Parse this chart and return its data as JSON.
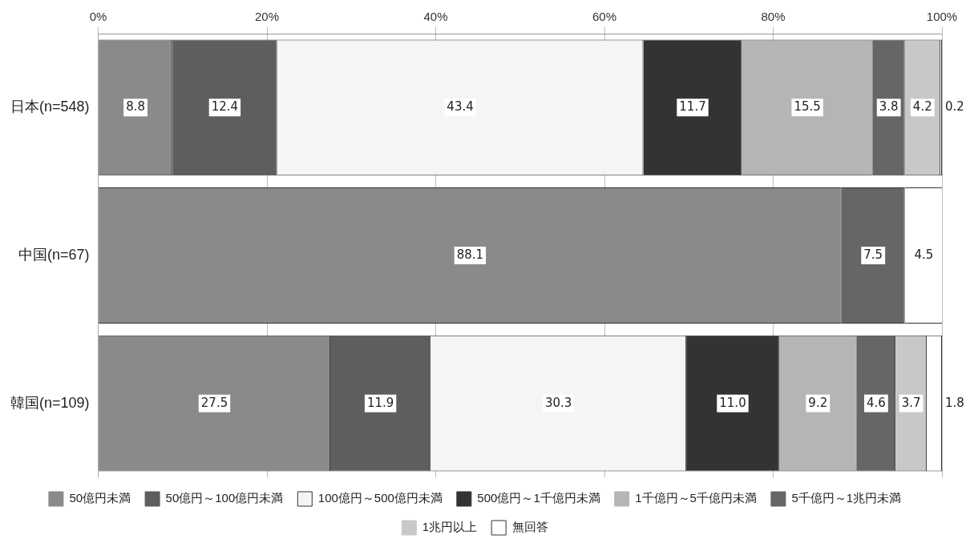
{
  "chart_data": {
    "type": "bar",
    "orientation": "horizontal",
    "stacked": true,
    "categories": [
      "日本(n=548)",
      "中国(n=67)",
      "韓国(n=109)"
    ],
    "series": [
      {
        "name": "50億円未満",
        "color": "#8a8a8a",
        "values": [
          8.8,
          88.1,
          27.5
        ]
      },
      {
        "name": "50億円～100億円未満",
        "color": "#5e5e5e",
        "values": [
          12.4,
          null,
          11.9
        ]
      },
      {
        "name": "100億円～500億円未満",
        "color": "#f5f5f5",
        "values": [
          43.4,
          null,
          30.3
        ]
      },
      {
        "name": "500億円～1千億円未満",
        "color": "#333333",
        "values": [
          11.7,
          null,
          11.0
        ],
        "value_labels": [
          "11.7",
          null,
          "11.0"
        ]
      },
      {
        "name": "1千億円～5千億円未満",
        "color": "#b5b5b5",
        "values": [
          15.5,
          null,
          9.2
        ]
      },
      {
        "name": "5千億円～1兆円未満",
        "color": "#666666",
        "values": [
          3.8,
          7.5,
          4.6
        ]
      },
      {
        "name": "1兆円以上",
        "color": "#c8c8c8",
        "values": [
          4.2,
          null,
          3.7
        ]
      },
      {
        "name": "無回答",
        "color": "#ffffff",
        "values": [
          0.2,
          4.5,
          1.8
        ]
      }
    ],
    "xlim": [
      0,
      100
    ],
    "xticks": [
      {
        "value": 0,
        "label": "0%"
      },
      {
        "value": 20,
        "label": "20%"
      },
      {
        "value": 40,
        "label": "40%"
      },
      {
        "value": 60,
        "label": "60%"
      },
      {
        "value": 80,
        "label": "80%"
      },
      {
        "value": 100,
        "label": "100%"
      }
    ],
    "grid": "x",
    "legend": "bottom",
    "data_labels": true
  }
}
